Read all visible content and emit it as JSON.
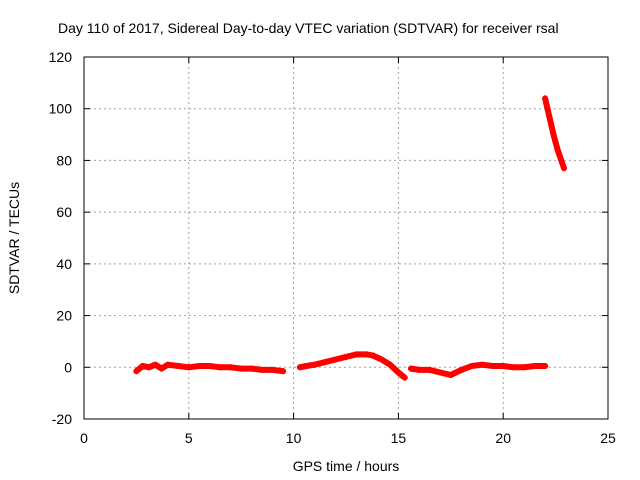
{
  "chart_data": {
    "type": "scatter",
    "title": "Day 110 of 2017, Sidereal Day-to-day VTEC variation (SDTVAR) for receiver rsal",
    "xlabel": "GPS time / hours",
    "ylabel": "SDTVAR / TECUs",
    "xlim": [
      0,
      25
    ],
    "ylim": [
      -20,
      120
    ],
    "xticks": [
      "0",
      "5",
      "10",
      "15",
      "20",
      "25"
    ],
    "yticks": [
      "-20",
      "0",
      "20",
      "40",
      "60",
      "80",
      "100",
      "120"
    ],
    "grid": true,
    "series_color": "#ff0000",
    "series": [
      {
        "x": [
          2.5,
          2.8,
          3.1,
          3.4,
          3.7,
          4.0,
          4.5,
          5.0,
          5.5,
          6.0,
          6.5,
          7.0,
          7.5,
          8.0,
          8.5,
          9.0,
          9.5
        ],
        "y": [
          -1.5,
          0.5,
          0.0,
          1.0,
          -0.5,
          1.0,
          0.5,
          0.0,
          0.5,
          0.5,
          0.0,
          0.0,
          -0.5,
          -0.5,
          -1.0,
          -1.0,
          -1.5
        ]
      },
      {
        "x": [
          10.3,
          10.6,
          11.0,
          11.5,
          12.0,
          12.5,
          13.0,
          13.5,
          13.8,
          14.2,
          14.6,
          15.0,
          15.3
        ],
        "y": [
          0.0,
          0.5,
          1.0,
          2.0,
          3.0,
          4.0,
          5.0,
          5.0,
          4.5,
          3.0,
          1.0,
          -2.0,
          -4.0
        ]
      },
      {
        "x": [
          15.6,
          16.0,
          16.5,
          17.0,
          17.5,
          18.0,
          18.5,
          19.0,
          19.5,
          20.0,
          20.5,
          21.0,
          21.5,
          22.0
        ],
        "y": [
          -0.5,
          -1.0,
          -1.0,
          -2.0,
          -3.0,
          -1.0,
          0.5,
          1.0,
          0.5,
          0.5,
          0.0,
          0.0,
          0.5,
          0.5
        ]
      },
      {
        "x": [
          22.0,
          22.2,
          22.4,
          22.6,
          22.9
        ],
        "y": [
          104,
          97,
          90,
          84,
          77
        ]
      }
    ]
  }
}
